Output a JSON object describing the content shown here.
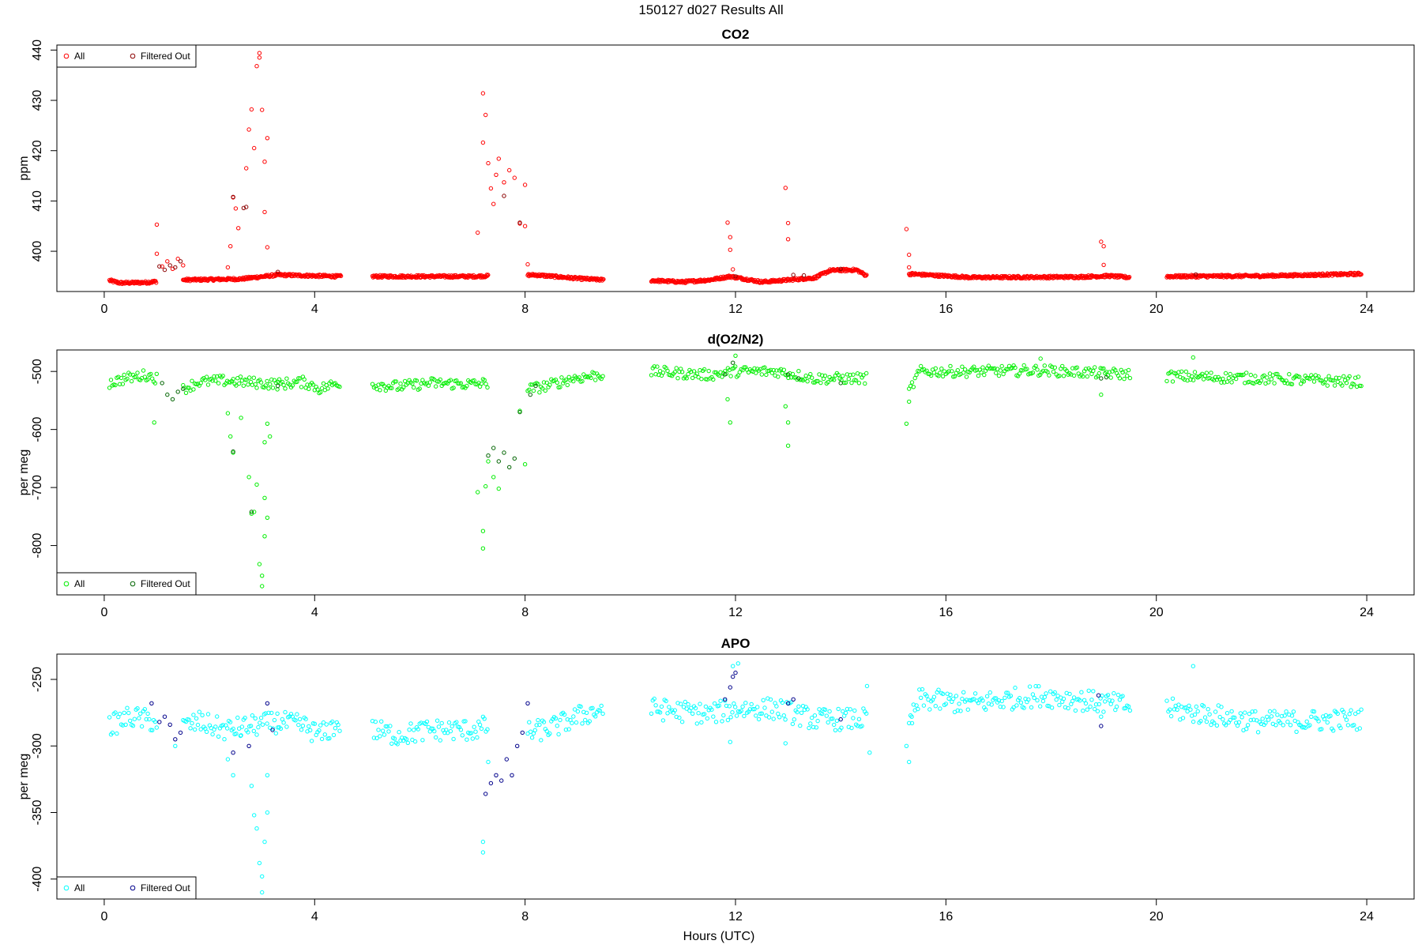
{
  "figure": {
    "title": "150127   d027   Results All",
    "xlabel": "Hours (UTC)"
  },
  "colors": {
    "frame": "#000000",
    "all_co2": "#ff0000",
    "filt_co2": "#8b0000",
    "all_o2": "#00ee00",
    "filt_o2": "#006400",
    "all_apo": "#00ffff",
    "filt_apo": "#00008b"
  },
  "chart_data": [
    {
      "type": "scatter",
      "title": "CO2",
      "ylabel": "ppm",
      "xlim": [
        -0.9,
        24.9
      ],
      "ylim": [
        392,
        441
      ],
      "xticks": [
        0,
        4,
        8,
        12,
        16,
        20,
        24
      ],
      "yticks": [
        400,
        410,
        420,
        430,
        440
      ],
      "legend": {
        "position": "top-left",
        "entries": [
          "All",
          "Filtered Out"
        ]
      },
      "baseline": [
        [
          0.1,
          394.2
        ],
        [
          0.3,
          393.7
        ],
        [
          0.8,
          393.8
        ],
        [
          1.0,
          394.0
        ],
        [
          1.5,
          394.3
        ],
        [
          2.6,
          394.5
        ],
        [
          3.3,
          395.3
        ],
        [
          4.5,
          395.0
        ],
        [
          5.2,
          395.0
        ],
        [
          7.0,
          395.0
        ],
        [
          7.3,
          395.1
        ],
        [
          8.2,
          395.3
        ],
        [
          9.0,
          394.6
        ],
        [
          9.5,
          394.3
        ],
        [
          10.4,
          394.2
        ],
        [
          11.0,
          393.9
        ],
        [
          11.5,
          394.3
        ],
        [
          11.9,
          395.0
        ],
        [
          12.5,
          393.9
        ],
        [
          13.5,
          394.7
        ],
        [
          13.8,
          396.2
        ],
        [
          14.3,
          396.3
        ],
        [
          14.5,
          395.1
        ],
        [
          15.3,
          395.5
        ],
        [
          16.5,
          394.8
        ],
        [
          18.5,
          394.9
        ],
        [
          19.1,
          395.1
        ],
        [
          19.5,
          394.8
        ],
        [
          20.2,
          395.0
        ],
        [
          22.0,
          395.1
        ],
        [
          23.9,
          395.5
        ]
      ],
      "all_points": [
        [
          1.0,
          405.3
        ],
        [
          1.0,
          399.5
        ],
        [
          1.1,
          397.0
        ],
        [
          1.2,
          398.0
        ],
        [
          1.3,
          396.5
        ],
        [
          1.4,
          398.5
        ],
        [
          1.5,
          397.2
        ],
        [
          2.35,
          396.8
        ],
        [
          2.4,
          401.0
        ],
        [
          2.45,
          410.7
        ],
        [
          2.5,
          408.5
        ],
        [
          2.55,
          404.6
        ],
        [
          2.7,
          416.5
        ],
        [
          2.75,
          424.2
        ],
        [
          2.8,
          428.2
        ],
        [
          2.85,
          420.5
        ],
        [
          2.9,
          436.8
        ],
        [
          2.95,
          439.4
        ],
        [
          2.95,
          438.5
        ],
        [
          3.0,
          428.1
        ],
        [
          3.05,
          417.8
        ],
        [
          3.1,
          422.5
        ],
        [
          3.05,
          407.8
        ],
        [
          3.1,
          400.8
        ],
        [
          7.1,
          403.7
        ],
        [
          7.2,
          431.4
        ],
        [
          7.25,
          427.1
        ],
        [
          7.2,
          421.6
        ],
        [
          7.3,
          417.5
        ],
        [
          7.35,
          412.5
        ],
        [
          7.4,
          409.4
        ],
        [
          7.45,
          415.2
        ],
        [
          7.5,
          418.4
        ],
        [
          7.6,
          413.7
        ],
        [
          7.7,
          416.1
        ],
        [
          7.8,
          414.6
        ],
        [
          7.9,
          405.5
        ],
        [
          8.0,
          413.2
        ],
        [
          8.0,
          405.0
        ],
        [
          8.05,
          397.4
        ],
        [
          11.85,
          405.7
        ],
        [
          11.9,
          402.8
        ],
        [
          11.9,
          400.3
        ],
        [
          11.95,
          396.4
        ],
        [
          12.95,
          412.6
        ],
        [
          13.0,
          405.6
        ],
        [
          13.0,
          402.4
        ],
        [
          15.25,
          404.4
        ],
        [
          15.3,
          399.3
        ],
        [
          15.3,
          396.8
        ],
        [
          18.95,
          401.9
        ],
        [
          19.0,
          401.0
        ],
        [
          19.0,
          397.3
        ]
      ],
      "filtered_points": [
        [
          1.05,
          397.0
        ],
        [
          1.15,
          396.3
        ],
        [
          1.25,
          397.2
        ],
        [
          1.35,
          396.8
        ],
        [
          1.45,
          398.0
        ],
        [
          2.45,
          410.8
        ],
        [
          2.65,
          408.6
        ],
        [
          2.7,
          408.8
        ],
        [
          3.3,
          395.9
        ],
        [
          7.9,
          405.7
        ],
        [
          7.6,
          411.0
        ],
        [
          12.0,
          395.0
        ],
        [
          13.1,
          395.3
        ],
        [
          13.3,
          395.2
        ],
        [
          14.0,
          396.5
        ],
        [
          20.75,
          395.4
        ]
      ]
    },
    {
      "type": "scatter",
      "title": "d(O2/N2)",
      "ylabel": "per meg",
      "xlim": [
        -0.9,
        24.9
      ],
      "ylim": [
        -885,
        -463
      ],
      "xticks": [
        0,
        4,
        8,
        12,
        16,
        20,
        24
      ],
      "yticks": [
        -500,
        -600,
        -700,
        -800
      ],
      "legend": {
        "position": "bottom-left",
        "entries": [
          "All",
          "Filtered Out"
        ]
      },
      "baseline": [
        [
          0.1,
          -520
        ],
        [
          0.4,
          -512
        ],
        [
          0.8,
          -506
        ],
        [
          1.0,
          -512
        ],
        [
          1.3,
          -528
        ],
        [
          1.5,
          -530
        ],
        [
          1.8,
          -518
        ],
        [
          2.3,
          -516
        ],
        [
          3.3,
          -522
        ],
        [
          3.8,
          -518
        ],
        [
          4.1,
          -530
        ],
        [
          4.5,
          -518
        ],
        [
          5.1,
          -522
        ],
        [
          5.6,
          -526
        ],
        [
          6.2,
          -520
        ],
        [
          7.0,
          -522
        ],
        [
          7.3,
          -520
        ],
        [
          8.1,
          -530
        ],
        [
          8.4,
          -525
        ],
        [
          8.9,
          -512
        ],
        [
          9.5,
          -505
        ],
        [
          10.4,
          -500
        ],
        [
          11.5,
          -506
        ],
        [
          12.0,
          -500
        ],
        [
          12.8,
          -500
        ],
        [
          13.5,
          -512
        ],
        [
          14.5,
          -512
        ],
        [
          15.3,
          -535
        ],
        [
          15.5,
          -500
        ],
        [
          16.5,
          -500
        ],
        [
          17.8,
          -498
        ],
        [
          19.5,
          -505
        ],
        [
          20.2,
          -508
        ],
        [
          22.0,
          -512
        ],
        [
          23.9,
          -518
        ]
      ],
      "all_points": [
        [
          0.95,
          -588
        ],
        [
          2.35,
          -572
        ],
        [
          2.4,
          -612
        ],
        [
          2.45,
          -640
        ],
        [
          2.6,
          -580
        ],
        [
          2.75,
          -682
        ],
        [
          2.8,
          -745
        ],
        [
          2.85,
          -742
        ],
        [
          2.9,
          -695
        ],
        [
          2.95,
          -832
        ],
        [
          3.0,
          -852
        ],
        [
          3.0,
          -870
        ],
        [
          3.05,
          -784
        ],
        [
          3.05,
          -718
        ],
        [
          3.1,
          -752
        ],
        [
          3.05,
          -622
        ],
        [
          3.1,
          -590
        ],
        [
          3.15,
          -612
        ],
        [
          7.1,
          -708
        ],
        [
          7.2,
          -775
        ],
        [
          7.2,
          -805
        ],
        [
          7.25,
          -698
        ],
        [
          7.3,
          -655
        ],
        [
          7.4,
          -682
        ],
        [
          7.5,
          -702
        ],
        [
          7.9,
          -568
        ],
        [
          8.0,
          -660
        ],
        [
          11.85,
          -548
        ],
        [
          11.9,
          -588
        ],
        [
          12.0,
          -473
        ],
        [
          12.95,
          -560
        ],
        [
          13.0,
          -588
        ],
        [
          13.0,
          -628
        ],
        [
          15.25,
          -590
        ],
        [
          15.3,
          -552
        ],
        [
          17.8,
          -478
        ],
        [
          18.95,
          -540
        ],
        [
          20.7,
          -476
        ]
      ],
      "filtered_points": [
        [
          1.1,
          -520
        ],
        [
          1.2,
          -540
        ],
        [
          1.3,
          -548
        ],
        [
          1.4,
          -535
        ],
        [
          1.5,
          -530
        ],
        [
          2.45,
          -638
        ],
        [
          2.8,
          -742
        ],
        [
          3.3,
          -525
        ],
        [
          7.3,
          -645
        ],
        [
          7.4,
          -632
        ],
        [
          7.5,
          -655
        ],
        [
          7.6,
          -640
        ],
        [
          7.7,
          -665
        ],
        [
          7.8,
          -650
        ],
        [
          7.9,
          -570
        ],
        [
          8.1,
          -540
        ],
        [
          8.2,
          -525
        ],
        [
          11.8,
          -505
        ],
        [
          11.95,
          -485
        ],
        [
          13.0,
          -505
        ],
        [
          13.2,
          -512
        ],
        [
          14.0,
          -520
        ],
        [
          18.95,
          -512
        ],
        [
          19.05,
          -510
        ]
      ]
    },
    {
      "type": "scatter",
      "title": "APO",
      "ylabel": "per meg",
      "xlim": [
        -0.9,
        24.9
      ],
      "ylim": [
        -415,
        -231
      ],
      "xticks": [
        0,
        4,
        8,
        12,
        16,
        20,
        24
      ],
      "yticks": [
        -250,
        -300,
        -350,
        -400
      ],
      "legend": {
        "position": "bottom-left",
        "entries": [
          "All",
          "Filtered Out"
        ]
      },
      "baseline": [
        [
          0.1,
          -285
        ],
        [
          0.5,
          -278
        ],
        [
          1.0,
          -282
        ],
        [
          1.5,
          -286
        ],
        [
          1.8,
          -282
        ],
        [
          2.3,
          -288
        ],
        [
          3.3,
          -282
        ],
        [
          3.8,
          -285
        ],
        [
          4.1,
          -292
        ],
        [
          4.5,
          -282
        ],
        [
          5.1,
          -288
        ],
        [
          5.6,
          -292
        ],
        [
          6.2,
          -288
        ],
        [
          7.0,
          -288
        ],
        [
          7.3,
          -285
        ],
        [
          8.1,
          -290
        ],
        [
          8.6,
          -285
        ],
        [
          9.0,
          -278
        ],
        [
          9.5,
          -272
        ],
        [
          10.4,
          -272
        ],
        [
          11.5,
          -276
        ],
        [
          12.0,
          -272
        ],
        [
          12.8,
          -272
        ],
        [
          13.5,
          -280
        ],
        [
          14.5,
          -280
        ],
        [
          15.3,
          -285
        ],
        [
          15.5,
          -265
        ],
        [
          16.5,
          -268
        ],
        [
          17.8,
          -262
        ],
        [
          19.5,
          -270
        ],
        [
          20.2,
          -272
        ],
        [
          22.0,
          -282
        ],
        [
          23.9,
          -280
        ]
      ],
      "all_points": [
        [
          1.35,
          -300
        ],
        [
          2.35,
          -310
        ],
        [
          2.45,
          -322
        ],
        [
          2.6,
          -292
        ],
        [
          2.8,
          -330
        ],
        [
          2.85,
          -352
        ],
        [
          2.9,
          -362
        ],
        [
          2.95,
          -388
        ],
        [
          3.0,
          -398
        ],
        [
          3.0,
          -410
        ],
        [
          3.05,
          -372
        ],
        [
          3.1,
          -350
        ],
        [
          3.1,
          -322
        ],
        [
          7.2,
          -372
        ],
        [
          7.2,
          -380
        ],
        [
          7.3,
          -312
        ],
        [
          11.9,
          -297
        ],
        [
          11.95,
          -240
        ],
        [
          12.05,
          -238
        ],
        [
          12.95,
          -298
        ],
        [
          15.25,
          -300
        ],
        [
          15.3,
          -312
        ],
        [
          15.35,
          -278
        ],
        [
          18.95,
          -278
        ],
        [
          20.7,
          -240
        ],
        [
          14.5,
          -255
        ],
        [
          14.55,
          -305
        ]
      ],
      "filtered_points": [
        [
          0.9,
          -268
        ],
        [
          1.05,
          -282
        ],
        [
          1.15,
          -278
        ],
        [
          1.25,
          -284
        ],
        [
          1.35,
          -295
        ],
        [
          1.45,
          -290
        ],
        [
          2.45,
          -305
        ],
        [
          2.75,
          -300
        ],
        [
          3.2,
          -288
        ],
        [
          3.1,
          -268
        ],
        [
          7.25,
          -336
        ],
        [
          7.35,
          -328
        ],
        [
          7.45,
          -322
        ],
        [
          7.55,
          -326
        ],
        [
          7.65,
          -310
        ],
        [
          7.75,
          -322
        ],
        [
          7.85,
          -300
        ],
        [
          7.95,
          -290
        ],
        [
          8.05,
          -268
        ],
        [
          11.8,
          -265
        ],
        [
          11.9,
          -256
        ],
        [
          11.95,
          -248
        ],
        [
          12.0,
          -245
        ],
        [
          13.0,
          -268
        ],
        [
          13.1,
          -265
        ],
        [
          14.0,
          -280
        ],
        [
          18.9,
          -262
        ],
        [
          18.95,
          -285
        ]
      ]
    }
  ]
}
